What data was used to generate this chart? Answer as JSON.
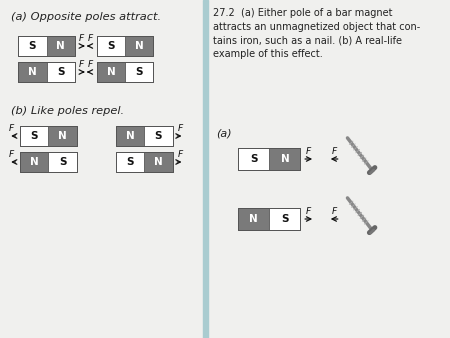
{
  "bg_color": "#f0f0ee",
  "dark_gray": "#7a7a7a",
  "light_gray": "#e0e0e0",
  "white": "#ffffff",
  "black": "#111111",
  "text_color": "#222222",
  "divider_color": "#aaccd0",
  "left_title_a": "(a) Opposite poles attract.",
  "left_title_b": "(b) Like poles repel.",
  "caption": "27.2  (a) Either pole of a bar magnet\nattracts an unmagnetized object that con-\ntains iron, such as a nail. (b) A real-life\nexample of this effect.",
  "sub_a": "(a)"
}
